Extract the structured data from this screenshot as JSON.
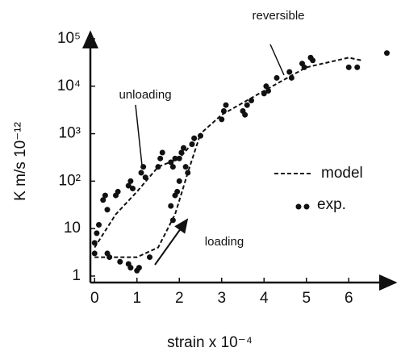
{
  "chart_data": {
    "type": "scatter",
    "x_label": "strain x 10⁻⁴",
    "y_label": "K m/s 10⁻¹²",
    "annotations": [
      "reversible",
      "unloading",
      "loading"
    ],
    "log_y": true,
    "xlim": [
      -0.1,
      7.1
    ],
    "ylim": [
      0.73,
      100000
    ],
    "xticks": [
      0,
      1,
      2,
      3,
      4,
      5,
      6
    ],
    "yticks": [
      1,
      10,
      {
        "value": 100,
        "label": "10²"
      },
      {
        "value": 1000,
        "label": "10³"
      },
      {
        "value": 10000,
        "label": "10⁴"
      },
      {
        "value": 100000,
        "label": "10⁵"
      }
    ],
    "series": [
      {
        "name": "model",
        "kind": "line",
        "dashed": true,
        "color": "#111",
        "x": [
          0,
          0.5,
          1,
          1.5,
          2,
          2.5,
          3,
          4,
          5,
          6,
          6.3
        ],
        "values": [
          4,
          20,
          60,
          200,
          300,
          1000,
          2500,
          8000,
          25000,
          40000,
          35000
        ]
      },
      {
        "name": null,
        "kind": "line",
        "dashed": true,
        "color": "#111",
        "x": [
          0,
          1,
          1.5,
          1.9,
          2.2,
          2.5
        ],
        "values": [
          2.5,
          2.5,
          4,
          20,
          150,
          1000
        ]
      },
      {
        "name": "exp.",
        "kind": "points",
        "color": "#111",
        "x": [
          0,
          0,
          0.05,
          0.1,
          0.2,
          0.25,
          0.3,
          0.5,
          0.55,
          0.8,
          0.85,
          0.9,
          1.1,
          1.15,
          1.2,
          1.5,
          1.55,
          1.6,
          1.8,
          1.85,
          1.9,
          2.0,
          2.05,
          2.1,
          2.15,
          2.3,
          2.35,
          2.5,
          3.0,
          3.05,
          3.1,
          3.5,
          3.55,
          3.6,
          3.7,
          4.0,
          4.05,
          4.1,
          4.3,
          4.6,
          4.65,
          4.9,
          4.95,
          5.1,
          5.15,
          6.0,
          6.2,
          6.9,
          0.3,
          0.35,
          0.6,
          0.8,
          0.85,
          1.0,
          1.05,
          1.3,
          1.8,
          1.85,
          1.9,
          1.95,
          2.0,
          2.2
        ],
        "values": [
          5,
          3,
          8,
          12,
          40,
          50,
          25,
          50,
          60,
          80,
          100,
          70,
          150,
          200,
          120,
          200,
          300,
          400,
          250,
          200,
          300,
          300,
          400,
          500,
          200,
          600,
          800,
          900,
          2000,
          3000,
          4000,
          3000,
          2500,
          4000,
          5000,
          7000,
          10000,
          8000,
          15000,
          20000,
          15000,
          30000,
          25000,
          40000,
          35000,
          25000,
          25000,
          50000,
          3,
          2.5,
          2,
          1.8,
          1.5,
          1.3,
          1.5,
          2.5,
          30,
          15,
          50,
          60,
          100,
          150
        ]
      }
    ]
  }
}
